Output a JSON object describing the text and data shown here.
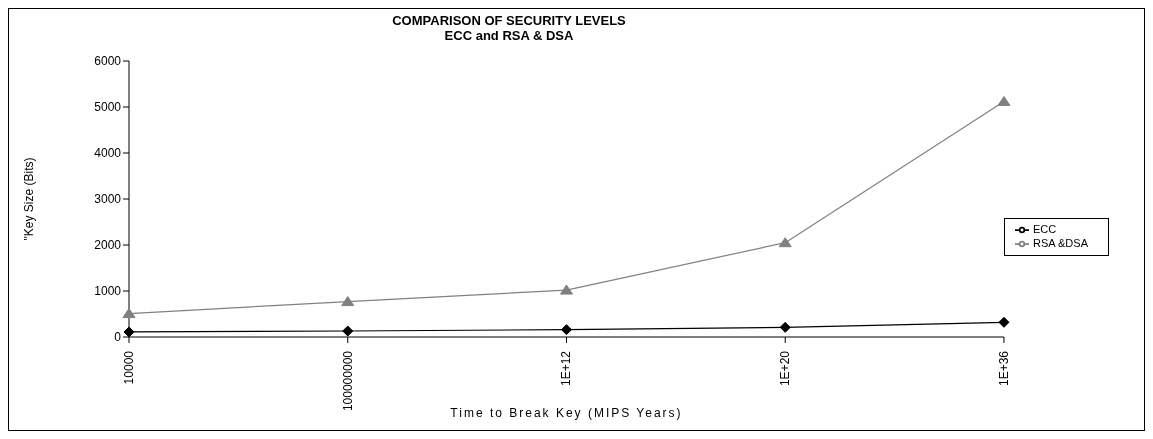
{
  "chart_data": {
    "type": "line",
    "title": "COMPARISON OF SECURITY LEVELS\nECC and RSA & DSA",
    "xlabel": "Time to Break Key (MIPS Years)",
    "ylabel": "\"Key Size (Bits)",
    "categories": [
      "10000",
      "100000000",
      "1E+12",
      "1E+20",
      "1E+36"
    ],
    "series": [
      {
        "name": "ECC",
        "color": "#000000",
        "marker": "diamond",
        "values": [
          110,
          130,
          160,
          210,
          320
        ]
      },
      {
        "name": "RSA &DSA",
        "color": "#808080",
        "marker": "triangle",
        "values": [
          510,
          770,
          1020,
          2050,
          5120
        ]
      }
    ],
    "ylim": [
      0,
      6000
    ],
    "yticks": [
      0,
      1000,
      2000,
      3000,
      4000,
      5000,
      6000
    ],
    "grid": false,
    "legend": "right"
  }
}
